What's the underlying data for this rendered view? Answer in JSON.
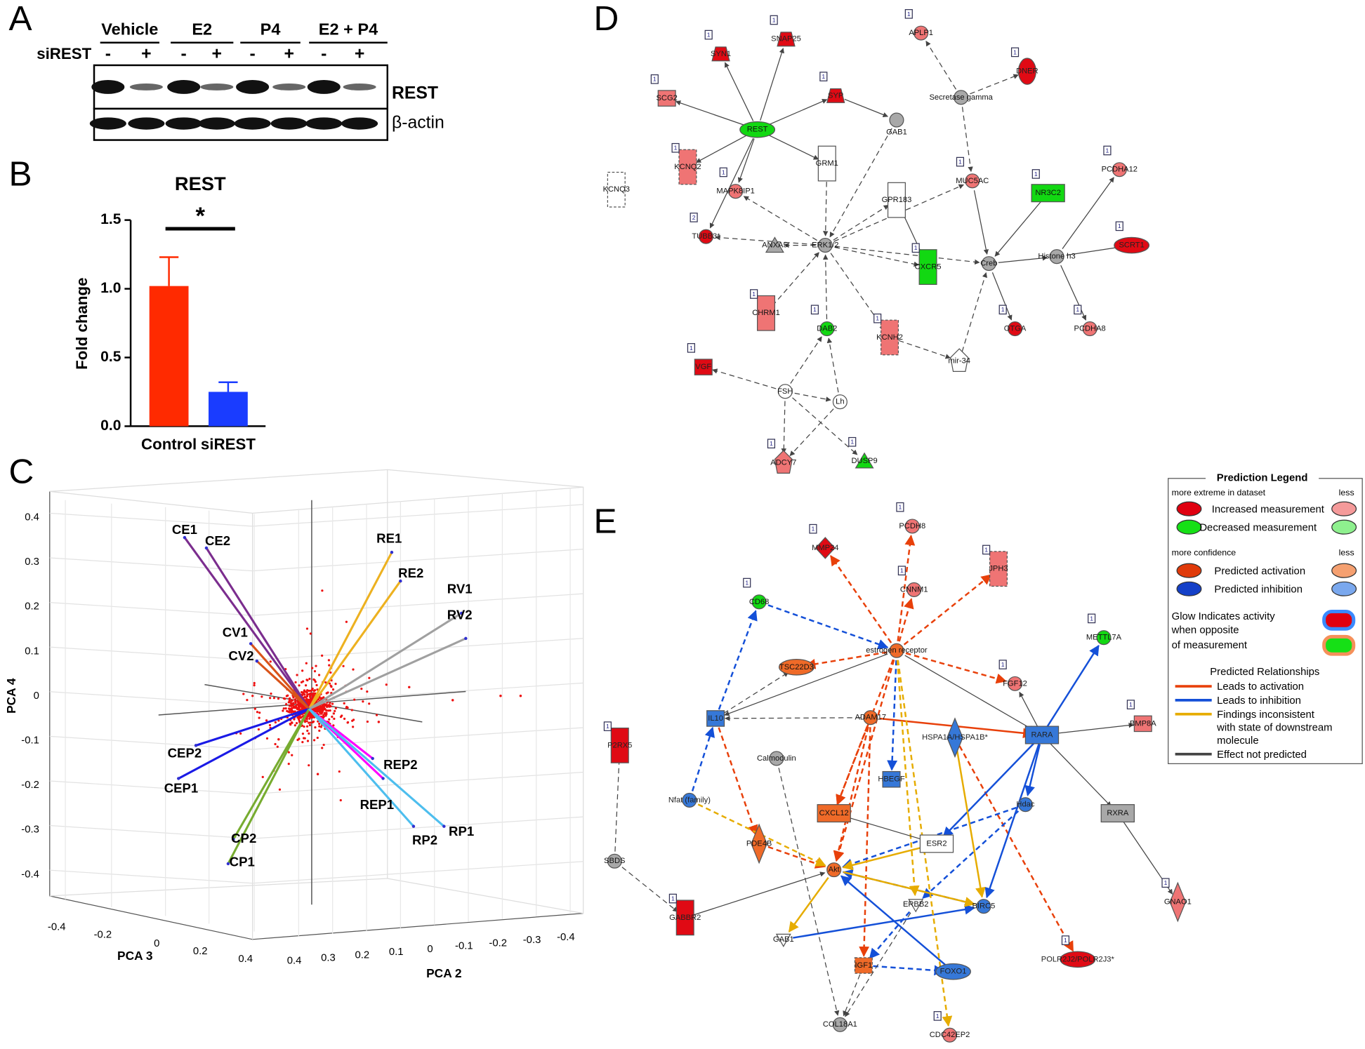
{
  "panel_a": {
    "letter": "A",
    "groups": [
      "Vehicle",
      "E2",
      "P4",
      "E2 + P4"
    ],
    "row_label": "siREST",
    "signs": [
      "-",
      "+",
      "-",
      "+",
      "-",
      "+",
      "-",
      "+"
    ],
    "bands": [
      "REST",
      "β-actin"
    ]
  },
  "chart_data": {
    "type": "bar",
    "panel_label": "B",
    "title": "REST",
    "y_label": "Fold change",
    "categories": [
      "Control",
      "siREST"
    ],
    "values": [
      1.02,
      0.25
    ],
    "errors": [
      0.21,
      0.07
    ],
    "colors": [
      "#ff2a00",
      "#1a3cff"
    ],
    "significance": "*",
    "ylim": [
      0,
      1.5
    ],
    "yticks": [
      {
        "value": 0,
        "label": "0.0"
      },
      0.5,
      {
        "value": 1,
        "label": "1.0"
      },
      1.5
    ]
  },
  "panel_c": {
    "letter": "C",
    "y_label": "PCA 4",
    "x_label": "PCA 3",
    "z_label": "PCA 2",
    "y_ticks": [
      "0.4",
      "0.3",
      "0.2",
      "0.1",
      "0",
      "-0.1",
      "-0.2",
      "-0.3",
      "-0.4"
    ],
    "x_ticks": [
      "-0.4",
      "-0.2",
      "0",
      "0.2",
      "0.4"
    ],
    "z_ticks": [
      "0.4",
      "0.3",
      "0.2",
      "0.1",
      "0",
      "-0.1",
      "-0.2",
      "-0.3",
      "-0.4"
    ],
    "vectors": [
      "CE1",
      "CE2",
      "RE1",
      "RE2",
      "RV1",
      "RV2",
      "CV1",
      "CV2",
      "CEP2",
      "CEP1",
      "CP2",
      "CP1",
      "REP2",
      "REP1",
      "RP2",
      "RP1"
    ]
  },
  "panel_d": {
    "letter": "D",
    "nodes": [
      {
        "label": "REST"
      },
      {
        "label": "SYN1",
        "tag": "1"
      },
      {
        "label": "SNAP25",
        "tag": "1"
      },
      {
        "label": "SCG2",
        "tag": "1"
      },
      {
        "label": "SYP",
        "tag": "1"
      },
      {
        "label": "GAB1"
      },
      {
        "label": "GRM1"
      },
      {
        "label": "KCNQ2",
        "tag": "1"
      },
      {
        "label": "KCNQ3"
      },
      {
        "label": "MAPK8IP1",
        "tag": "1"
      },
      {
        "label": "TUBB3*",
        "tag": "2"
      },
      {
        "label": "ANXA5"
      },
      {
        "label": "ERK1/2"
      },
      {
        "label": "GPR183"
      },
      {
        "label": "CXCR5",
        "tag": "1"
      },
      {
        "label": "MUC5AC",
        "tag": "1"
      },
      {
        "label": "NR3C2",
        "tag": "1"
      },
      {
        "label": "PCDHA12",
        "tag": "1"
      },
      {
        "label": "Creb"
      },
      {
        "label": "Histone h3"
      },
      {
        "label": "SCRT1",
        "tag": "1"
      },
      {
        "label": "CHRM1",
        "tag": "1"
      },
      {
        "label": "DAB2",
        "tag": "1"
      },
      {
        "label": "KCNH2",
        "tag": "1"
      },
      {
        "label": "OTGA",
        "tag": "1"
      },
      {
        "label": "PCDHA8",
        "tag": "1"
      },
      {
        "label": "mir-34"
      },
      {
        "label": "VGF",
        "tag": "1"
      },
      {
        "label": "FSH"
      },
      {
        "label": "Lh"
      },
      {
        "label": "ADCY7",
        "tag": "1"
      },
      {
        "label": "DUSP9",
        "tag": "1"
      },
      {
        "label": "Secretase gamma"
      },
      {
        "label": "APLP1",
        "tag": "1"
      },
      {
        "label": "DNER",
        "tag": "1"
      }
    ]
  },
  "panel_e": {
    "letter": "E",
    "nodes": [
      {
        "label": "MMP24",
        "tag": "1"
      },
      {
        "label": "PCDH8",
        "tag": "1"
      },
      {
        "label": "JPH3",
        "tag": "1"
      },
      {
        "label": "CNNM1",
        "tag": "1"
      },
      {
        "label": "CD68",
        "tag": "1"
      },
      {
        "label": "estrogen receptor"
      },
      {
        "label": "TSC22D3"
      },
      {
        "label": "FGF12",
        "tag": "1"
      },
      {
        "label": "METTL7A",
        "tag": "1"
      },
      {
        "label": "BMP8A",
        "tag": "1"
      },
      {
        "label": "P2RX5",
        "tag": "1"
      },
      {
        "label": "IL10"
      },
      {
        "label": "ADAM17"
      },
      {
        "label": "HSPA1A/HSPA1B*"
      },
      {
        "label": "RARA"
      },
      {
        "label": "Calmodulin"
      },
      {
        "label": "HBEGF"
      },
      {
        "label": "Nfat (family)"
      },
      {
        "label": "CXCL12"
      },
      {
        "label": "Hdac"
      },
      {
        "label": "RXRA"
      },
      {
        "label": "ESR2"
      },
      {
        "label": "PDE4B"
      },
      {
        "label": "SBDS"
      },
      {
        "label": "Akt"
      },
      {
        "label": "ERBB2"
      },
      {
        "label": "BIRC5"
      },
      {
        "label": "GNAO1",
        "tag": "1"
      },
      {
        "label": "GABBR2",
        "tag": "1"
      },
      {
        "label": "GAB1"
      },
      {
        "label": "IGF1"
      },
      {
        "label": "FOXO1"
      },
      {
        "label": "POLR2J2/POLR2J3*",
        "tag": "1"
      },
      {
        "label": "COL18A1"
      },
      {
        "label": "CDC42EP2",
        "tag": "1"
      }
    ],
    "legend": {
      "title": "Prediction Legend",
      "left_1": "more extreme in dataset",
      "right_1": "less",
      "increased": "Increased measurement",
      "decreased": "Decreased measurement",
      "left_2": "more confidence",
      "right_2": "less",
      "activation": "Predicted activation",
      "inhibition": "Predicted inhibition",
      "glow": [
        "Glow Indicates activity",
        "when opposite",
        "of measurement"
      ],
      "relationships": "Predicted Relationships",
      "leads_activation": "Leads to activation",
      "leads_inhibition": "Leads to inhibition",
      "inconsistent": [
        "Findings inconsistent",
        "with state of downstream",
        "molecule"
      ],
      "not_predicted": "Effect not predicted"
    }
  }
}
